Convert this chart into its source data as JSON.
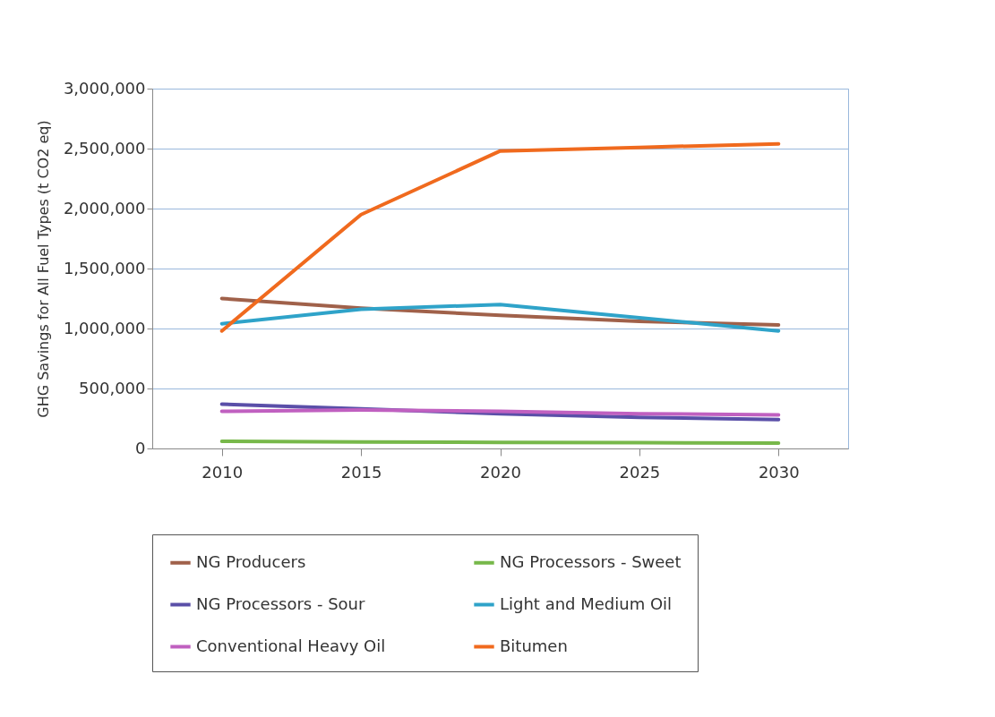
{
  "chart_data": {
    "type": "line",
    "ylabel": "GHG Savings for All Fuel Types (t CO2 eq)",
    "categories": [
      "2010",
      "2015",
      "2020",
      "2025",
      "2030"
    ],
    "series": [
      {
        "name": "NG Producers",
        "color": "#a0614a",
        "values": [
          1250000,
          1170000,
          1110000,
          1060000,
          1030000
        ]
      },
      {
        "name": "NG Processors - Sweet",
        "color": "#77b84a",
        "values": [
          60000,
          55000,
          50000,
          48000,
          45000
        ]
      },
      {
        "name": "NG Processors - Sour",
        "color": "#5a4fa8",
        "values": [
          370000,
          330000,
          290000,
          260000,
          240000
        ]
      },
      {
        "name": "Light and Medium Oil",
        "color": "#2fa3c9",
        "values": [
          1040000,
          1160000,
          1200000,
          1090000,
          980000
        ]
      },
      {
        "name": "Conventional Heavy Oil",
        "color": "#c060c0",
        "values": [
          310000,
          320000,
          310000,
          290000,
          280000
        ]
      },
      {
        "name": "Bitumen",
        "color": "#f06a1e",
        "values": [
          980000,
          1950000,
          2480000,
          2510000,
          2540000
        ]
      }
    ],
    "ylim": [
      0,
      3000000
    ],
    "yticks": [
      {
        "value": 0,
        "label": "0"
      },
      {
        "value": 500000,
        "label": "500,000"
      },
      {
        "value": 1000000,
        "label": "1,000,000"
      },
      {
        "value": 1500000,
        "label": "1,500,000"
      },
      {
        "value": 2000000,
        "label": "2,000,000"
      },
      {
        "value": 2500000,
        "label": "2,500,000"
      },
      {
        "value": 3000000,
        "label": "3,000,000"
      }
    ],
    "grid": "y",
    "legend": "bottom",
    "marker": "none",
    "line_style": "solid"
  }
}
